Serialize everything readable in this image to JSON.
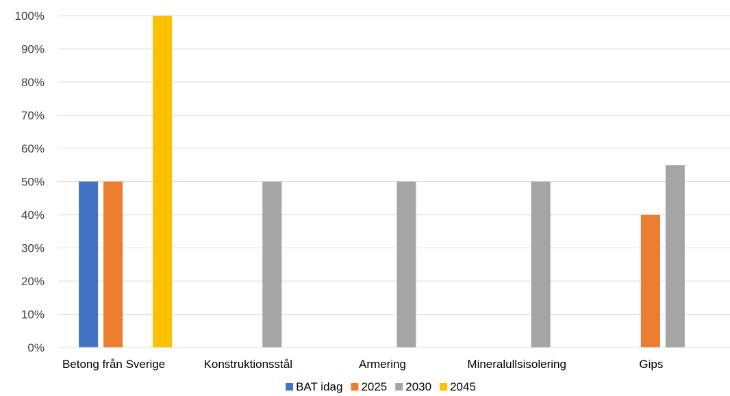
{
  "chart_data": {
    "type": "bar",
    "title": "",
    "xlabel": "",
    "ylabel": "",
    "categories": [
      "Betong från Sverige",
      "Konstruktionsstål",
      "Armering",
      "Mineralullsisolering",
      "Gips"
    ],
    "series": [
      {
        "name": "BAT idag",
        "color": "#4472C4",
        "values": [
          50,
          null,
          null,
          null,
          null
        ]
      },
      {
        "name": "2025",
        "color": "#ED7D31",
        "values": [
          50,
          null,
          null,
          null,
          40
        ]
      },
      {
        "name": "2030",
        "color": "#A5A5A5",
        "values": [
          null,
          50,
          50,
          50,
          55
        ]
      },
      {
        "name": "2045",
        "color": "#FFC000",
        "values": [
          100,
          null,
          null,
          null,
          null
        ]
      }
    ],
    "yticks": [
      "0%",
      "10%",
      "20%",
      "30%",
      "40%",
      "50%",
      "60%",
      "70%",
      "80%",
      "90%",
      "100%"
    ],
    "ylim": [
      0,
      100
    ],
    "grid": true,
    "legend_position": "bottom"
  }
}
